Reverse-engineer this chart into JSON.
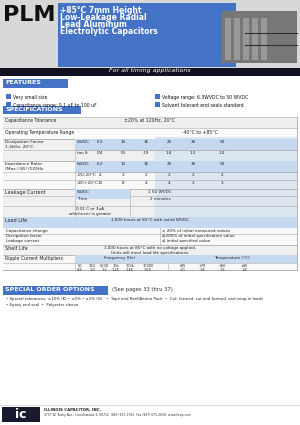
{
  "header_bg": "#4472c4",
  "header_dark": "#1a1a2e",
  "features_bg": "#4472c4",
  "specs_bg": "#4472c4",
  "special_bg": "#4472c4",
  "table_header_bg": "#c5d9f1",
  "table_light_bg": "#dce6f1",
  "page_bg": "#ffffff",
  "dissipation_wvdc": [
    "6.3",
    "10",
    "16",
    "25",
    "35",
    "50"
  ],
  "dissipation_tan": [
    "0/4",
    ".35",
    ".19",
    "1.4",
    "1.3",
    "1.0"
  ],
  "impedance_25": [
    "4",
    "3",
    "2",
    "2",
    "2",
    "2"
  ],
  "impedance_40": [
    "10",
    "8",
    "4",
    "4",
    "3",
    "3"
  ],
  "features": [
    "Very small size",
    "Capacitance range: 0.1 uF to 100 uF",
    "Voltage range: 6.3WVDC to 50 WVDC",
    "Solvent tolerant end seals standard"
  ],
  "rfreqs": [
    "50",
    "120",
    "5000",
    "10k",
    "100k",
    "10000"
  ],
  "rfreq_vals": [
    "0.8",
    "1.0",
    "1.2",
    "1.25",
    "1.45",
    "1.50"
  ],
  "rtemps": [
    "+85",
    "+70",
    "+60",
    "+45"
  ],
  "rtemp_vals": [
    "1.0",
    "1.4",
    "1.5",
    "1.8"
  ],
  "company_addr": "3757 W. Touhy Ave., Lincolnwood, IL 60712  (847) 675-1760  Fax (847) 675-2658  www.ilcap.com"
}
